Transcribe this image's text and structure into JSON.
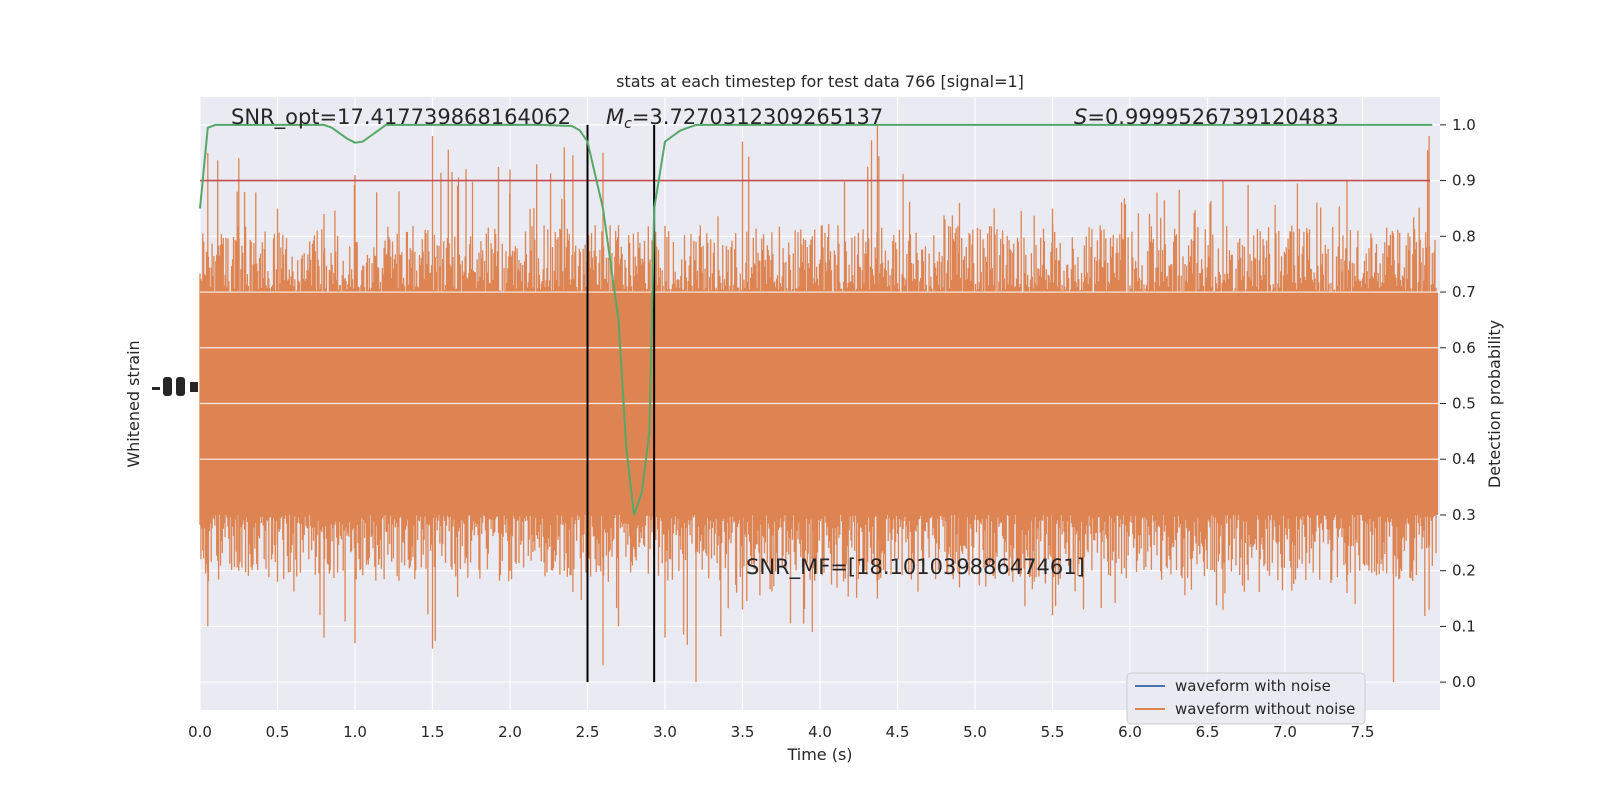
{
  "chart_data": {
    "type": "line",
    "title": "stats at each timestep for test data 766 [signal=1]",
    "xlabel": "Time (s)",
    "ylabel_left": "Whitened strain",
    "ylabel_right": "Detection probability",
    "xlim": [
      0.0,
      8.0
    ],
    "ylim_right": [
      -0.05,
      1.05
    ],
    "xticks": [
      "0.0",
      "0.5",
      "1.0",
      "1.5",
      "2.0",
      "2.5",
      "3.0",
      "3.5",
      "4.0",
      "4.5",
      "5.0",
      "5.5",
      "6.0",
      "6.5",
      "7.0",
      "7.5"
    ],
    "yticks_right": [
      "0.0",
      "0.1",
      "0.2",
      "0.3",
      "0.4",
      "0.5",
      "0.6",
      "0.7",
      "0.8",
      "0.9",
      "1.0"
    ],
    "grid": true,
    "legend": {
      "placement": "lower-right",
      "entries": [
        {
          "name": "waveform with noise",
          "color": "#4c72b0"
        },
        {
          "name": "waveform without noise",
          "color": "#dd8452"
        }
      ]
    },
    "annotations": {
      "snr_opt": "SNR_opt=17.417739868164062",
      "mc_symbol": "M",
      "mc_subscript": "c",
      "mc_value": "=3.7270312309265137",
      "s_symbol": "S",
      "s_value": "=0.9999526739120483",
      "snr_mf": "SNR_MF=[18.10103988647461]"
    },
    "threshold": {
      "y": 0.9,
      "color": "#c44e52"
    },
    "vertical_lines": [
      {
        "x": 2.5
      },
      {
        "x": 2.93
      }
    ],
    "detection_probability": {
      "color": "#55a868",
      "x": [
        0.0,
        0.05,
        0.1,
        0.2,
        0.4,
        0.6,
        0.8,
        0.85,
        0.9,
        0.95,
        1.0,
        1.05,
        1.1,
        1.15,
        1.2,
        1.25,
        1.3,
        1.5,
        2.0,
        2.2,
        2.4,
        2.45,
        2.5,
        2.6,
        2.7,
        2.75,
        2.8,
        2.85,
        2.9,
        2.93,
        3.0,
        3.05,
        3.1,
        3.2,
        3.4,
        4.0,
        5.0,
        6.0,
        7.0,
        7.5,
        7.95
      ],
      "y": [
        0.85,
        0.995,
        1.0,
        1.0,
        1.0,
        1.0,
        1.0,
        0.995,
        0.985,
        0.975,
        0.968,
        0.97,
        0.98,
        0.99,
        1.0,
        1.0,
        1.0,
        1.0,
        1.0,
        1.0,
        0.998,
        0.99,
        0.97,
        0.85,
        0.65,
        0.42,
        0.3,
        0.34,
        0.45,
        0.85,
        0.97,
        0.98,
        0.99,
        1.0,
        1.0,
        1.0,
        1.0,
        1.0,
        1.0,
        1.0,
        1.0
      ]
    },
    "waveform_without_noise": {
      "color": "#dd8452",
      "envelope_note": "dense noisy strain; band roughly 0.3-0.7 with spikes to 0.0-1.0 on right axis scale",
      "x": [
        0.05,
        0.25,
        0.5,
        0.8,
        1.0,
        1.5,
        2.0,
        2.35,
        2.6,
        2.7,
        3.0,
        3.2,
        3.5,
        3.95,
        4.37,
        4.9,
        5.5,
        6.6,
        7.4,
        7.7,
        7.93
      ],
      "y_top": [
        0.95,
        0.94,
        0.85,
        0.84,
        0.91,
        0.98,
        0.92,
        0.96,
        0.95,
        0.82,
        0.81,
        0.79,
        0.97,
        0.8,
        1.0,
        0.86,
        0.85,
        0.9,
        0.9,
        0.8,
        0.98
      ],
      "y_bottom": [
        0.1,
        0.2,
        0.18,
        0.08,
        0.07,
        0.06,
        0.2,
        0.2,
        0.03,
        0.1,
        0.08,
        0.0,
        0.13,
        0.09,
        0.15,
        0.17,
        0.12,
        0.13,
        0.16,
        0.0,
        0.13
      ]
    }
  }
}
